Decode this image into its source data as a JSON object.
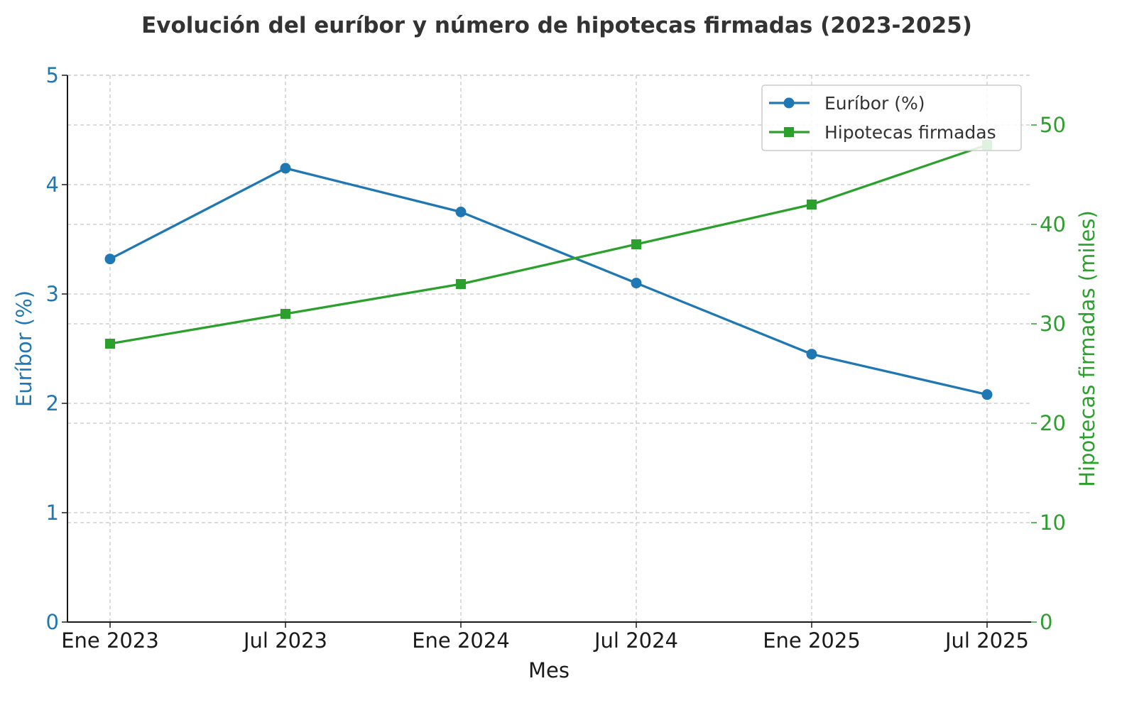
{
  "chart_data": {
    "type": "line",
    "title": "Evolución del euríbor y número de hipotecas firmadas (2023-2025)",
    "xlabel": "Mes",
    "categories": [
      "Ene 2023",
      "Jul 2023",
      "Ene 2024",
      "Jul 2024",
      "Ene 2025",
      "Jul 2025"
    ],
    "y_left": {
      "label": "Euríbor (%)",
      "lim": [
        0,
        5
      ],
      "ticks": [
        0,
        1,
        2,
        3,
        4,
        5
      ],
      "color": "#1f77b4"
    },
    "y_right": {
      "label": "Hipotecas firmadas (miles)",
      "lim": [
        0,
        55
      ],
      "ticks": [
        0,
        10,
        20,
        30,
        40,
        50
      ],
      "color": "#2ca02c"
    },
    "series": [
      {
        "name": "Euríbor (%)",
        "axis": "left",
        "marker": "circle",
        "color": "#1f77b4",
        "values": [
          3.32,
          4.15,
          3.75,
          3.1,
          2.45,
          2.08
        ]
      },
      {
        "name": "Hipotecas firmadas",
        "axis": "right",
        "marker": "square",
        "color": "#2ca02c",
        "values": [
          28,
          31,
          34,
          38,
          42,
          48
        ]
      }
    ],
    "grid": true,
    "legend_position": "top-right"
  }
}
